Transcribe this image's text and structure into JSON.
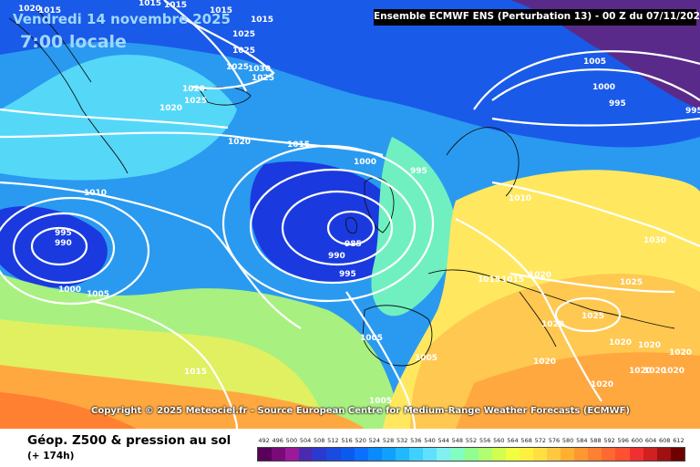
{
  "map": {
    "date_line": "Vendredi 14 novembre 2025",
    "time_line": "7:00 locale",
    "header": "Ensemble ECMWF ENS  (Perturbation 13)  -  00 Z du 07/11/2025",
    "copyright": "Copyright © 2025 Meteociel.fr - Source European Centre for Medium-Range Weather Forecasts (ECMWF)",
    "isobar_labels": [
      "1020",
      "1015",
      "1015",
      "1015",
      "1015",
      "1015",
      "1025",
      "1025",
      "1025",
      "1030",
      "1025",
      "1020",
      "1025",
      "1020",
      "1020",
      "1015",
      "1010",
      "1000",
      "995",
      "985",
      "990",
      "995",
      "995",
      "990",
      "1000",
      "1005",
      "1005",
      "1005",
      "1015",
      "1005",
      "1015",
      "1015",
      "1020",
      "1010",
      "1005",
      "1000",
      "995",
      "995",
      "1030",
      "1025",
      "1025",
      "1020",
      "1020",
      "1020",
      "1020",
      "1020",
      "1020",
      "1020",
      "1020",
      "1020"
    ]
  },
  "legend": {
    "title": "Géop. Z500 & pression au sol",
    "subtitle": "(+ 174h)",
    "scale_values": [
      "492",
      "496",
      "500",
      "504",
      "508",
      "512",
      "516",
      "520",
      "524",
      "528",
      "532",
      "536",
      "540",
      "544",
      "548",
      "552",
      "556",
      "560",
      "564",
      "568",
      "572",
      "576",
      "580",
      "584",
      "588",
      "592",
      "596",
      "600",
      "604",
      "608",
      "612"
    ],
    "scale_colors": [
      "#5a005a",
      "#7a0a7a",
      "#9a1a9a",
      "#4a2ab0",
      "#2a3ad0",
      "#1a4ae0",
      "#0a5af0",
      "#0a70ff",
      "#0a8aff",
      "#10a0ff",
      "#20b8ff",
      "#40d0ff",
      "#60e0ff",
      "#80f0f0",
      "#80ffc0",
      "#90ff90",
      "#b0ff70",
      "#d0ff50",
      "#f0ff40",
      "#fff040",
      "#ffe040",
      "#ffc840",
      "#ffb030",
      "#ff9830",
      "#ff8030",
      "#ff6830",
      "#ff5030",
      "#f03030",
      "#d02020",
      "#a01010",
      "#700000"
    ],
    "map_fill_colors": {
      "deep_blue": "#1a3ae0",
      "blue": "#1a5ae8",
      "light_blue": "#2a9af0",
      "cyan": "#55d8f8",
      "green_cyan": "#70f0c0",
      "green": "#a8f080",
      "yellow_green": "#e0f060",
      "yellow": "#ffe860",
      "light_orange": "#ffc850",
      "orange": "#ffa840",
      "red_orange": "#ff8030",
      "purple": "#5a2a8a"
    }
  }
}
